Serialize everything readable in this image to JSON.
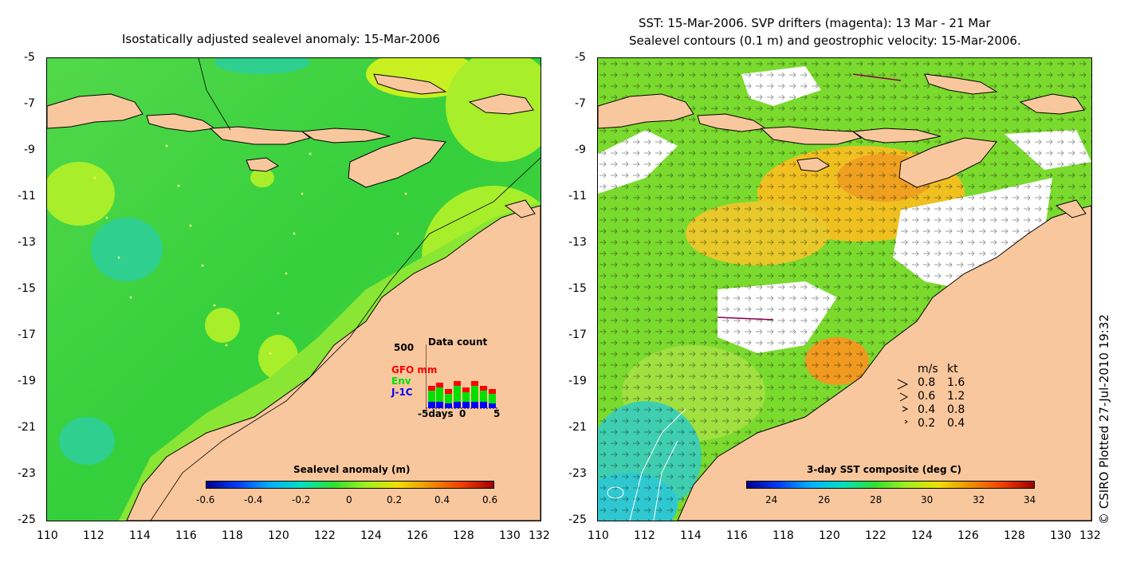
{
  "left_panel": {
    "title": "Isostatically adjusted sealevel anomaly: 15-Mar-2006",
    "colorbar": {
      "title": "Sealevel anomaly (m)",
      "ticks": [
        "-0.6",
        "-0.4",
        "-0.2",
        "0",
        "0.2",
        "0.4",
        "0.6"
      ]
    },
    "data_count": {
      "title": "Data count",
      "ymax_label": "500",
      "series": [
        "GFO mm",
        "Env",
        "J-1C"
      ],
      "series_colors": [
        "#ff0000",
        "#00e000",
        "#0000ff"
      ],
      "x_labels": [
        "-5days",
        "0",
        "5"
      ]
    }
  },
  "right_panel": {
    "title_line1": "SST: 15-Mar-2006. SVP drifters (magenta): 13 Mar - 21 Mar",
    "title_line2": "Sealevel contours (0.1 m) and geostrophic velocity: 15-Mar-2006.",
    "colorbar": {
      "title": "3-day SST composite (deg C)",
      "ticks": [
        "24",
        "26",
        "28",
        "30",
        "32",
        "34"
      ]
    },
    "velocity_legend": {
      "header_ms": "m/s",
      "header_kt": "kt",
      "rows": [
        {
          "ms": "0.8",
          "kt": "1.6"
        },
        {
          "ms": "0.6",
          "kt": "1.2"
        },
        {
          "ms": "0.4",
          "kt": "0.8"
        },
        {
          "ms": "0.2",
          "kt": "0.4"
        }
      ]
    }
  },
  "axes": {
    "lat_ticks": [
      "-5",
      "-7",
      "-9",
      "-11",
      "-13",
      "-15",
      "-17",
      "-19",
      "-21",
      "-23",
      "-25"
    ],
    "lon_ticks": [
      "110",
      "112",
      "114",
      "116",
      "118",
      "120",
      "122",
      "124",
      "126",
      "128",
      "130",
      "132"
    ]
  },
  "credit": "© CSIRO Plotted 27-Jul-2010 19:32",
  "colors": {
    "land": "#f9c79d",
    "ocean_green": "#3fd23f",
    "ocean_lime": "#a8ee2a",
    "ocean_cyan": "#2ecf8f",
    "sst_orange": "#f0a020",
    "cloud_white": "#ffffff"
  }
}
